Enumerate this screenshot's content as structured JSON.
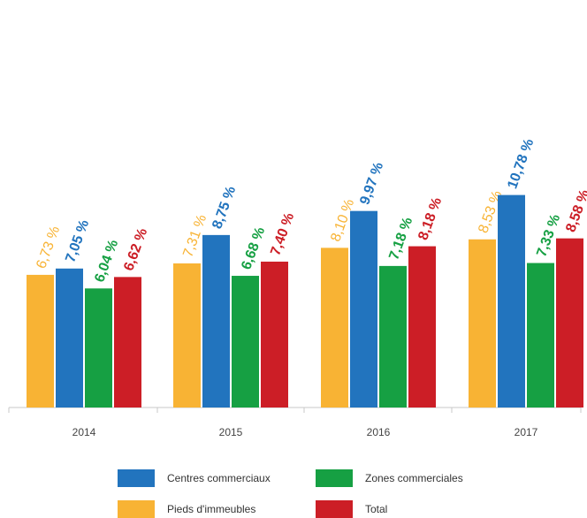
{
  "chart_data": {
    "type": "bar",
    "categories": [
      "2014",
      "2015",
      "2016",
      "2017"
    ],
    "series": [
      {
        "name": "Pieds d'immeubles",
        "color": "#F8B334",
        "values": [
          6.73,
          7.31,
          8.1,
          8.53
        ],
        "labels": [
          "6,73 %",
          "7,31 %",
          "8,10 %",
          "8,53 %"
        ]
      },
      {
        "name": "Centres commerciaux",
        "color": "#2274BE",
        "values": [
          7.05,
          8.75,
          9.97,
          10.78
        ],
        "labels": [
          "7,05 %",
          "8,75 %",
          "9,97 %",
          "10,78 %"
        ]
      },
      {
        "name": "Zones commerciales",
        "color": "#16A043",
        "values": [
          6.04,
          6.68,
          7.18,
          7.33
        ],
        "labels": [
          "6,04 %",
          "6,68 %",
          "7,18 %",
          "7,33 %"
        ]
      },
      {
        "name": "Total",
        "color": "#CC1E26",
        "values": [
          6.62,
          7.4,
          8.18,
          8.58
        ],
        "labels": [
          "6,62 %",
          "7,40 %",
          "8,18 %",
          "8,58 %"
        ]
      }
    ],
    "ylim": [
      0,
      12
    ],
    "grid": false,
    "legend_position": "bottom"
  },
  "legend": {
    "items": [
      {
        "label": "Centres commerciaux",
        "color": "#2274BE"
      },
      {
        "label": "Zones commerciales",
        "color": "#16A043"
      },
      {
        "label": "Pieds d'immeubles",
        "color": "#F8B334"
      },
      {
        "label": "Total",
        "color": "#CC1E26"
      }
    ]
  }
}
